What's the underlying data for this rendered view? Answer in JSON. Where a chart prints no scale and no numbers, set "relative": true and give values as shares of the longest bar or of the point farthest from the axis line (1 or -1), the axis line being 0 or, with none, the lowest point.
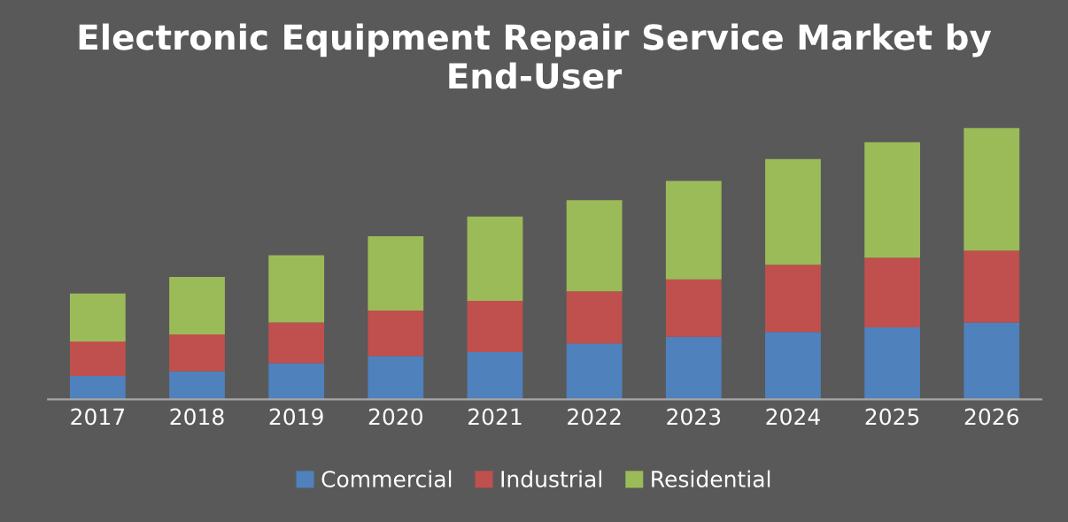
{
  "chart_data": {
    "type": "bar",
    "stacked": true,
    "relative": true,
    "title": "Electronic Equipment Repair Service Market by End-User",
    "categories": [
      "2017",
      "2018",
      "2019",
      "2020",
      "2021",
      "2022",
      "2023",
      "2024",
      "2025",
      "2026"
    ],
    "series": [
      {
        "name": "Commercial",
        "color": "#4f81bd",
        "values": [
          0.086,
          0.103,
          0.133,
          0.159,
          0.174,
          0.206,
          0.23,
          0.248,
          0.265,
          0.283
        ]
      },
      {
        "name": "Industrial",
        "color": "#c0504d",
        "values": [
          0.127,
          0.136,
          0.15,
          0.168,
          0.189,
          0.192,
          0.212,
          0.248,
          0.257,
          0.265
        ]
      },
      {
        "name": "Residential",
        "color": "#9bbb59",
        "values": [
          0.177,
          0.212,
          0.248,
          0.274,
          0.31,
          0.336,
          0.363,
          0.389,
          0.425,
          0.452
        ]
      }
    ],
    "legend": "bottom",
    "grid": false
  }
}
